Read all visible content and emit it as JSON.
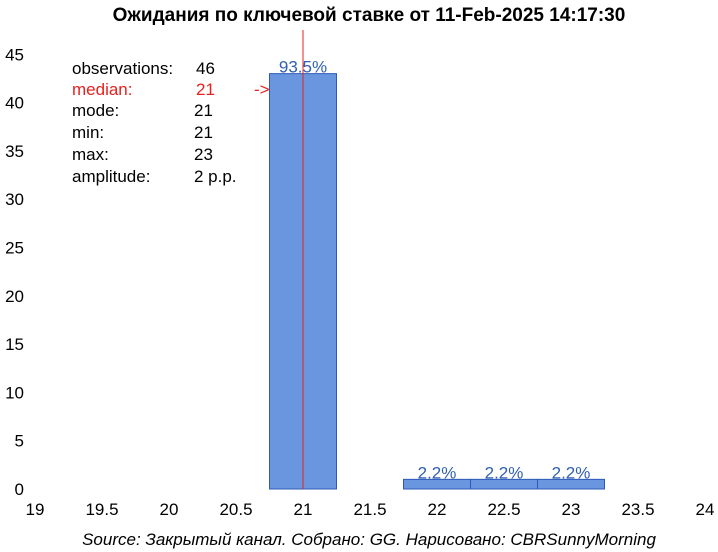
{
  "chart_data": {
    "type": "bar",
    "title": "Ожидания по ключевой ставке от 11-Feb-2025 14:17:30",
    "xlabel": "",
    "ylabel": "",
    "xlim": [
      19,
      24
    ],
    "ylim": [
      0,
      47
    ],
    "x_ticks": [
      "19",
      "19.5",
      "20",
      "20.5",
      "21",
      "21.5",
      "22",
      "22.5",
      "23",
      "23.5",
      "24"
    ],
    "y_ticks": [
      "0",
      "5",
      "10",
      "15",
      "20",
      "25",
      "30",
      "35",
      "40",
      "45"
    ],
    "bin_width": 0.5,
    "bars": [
      {
        "x": 21,
        "value": 43,
        "label": "93.5%"
      },
      {
        "x": 22,
        "value": 1,
        "label": "2.2%"
      },
      {
        "x": 22.5,
        "value": 1,
        "label": "2.2%"
      },
      {
        "x": 23,
        "value": 1,
        "label": "2.2%"
      }
    ],
    "median_line": 21,
    "bar_color": "#6a96e0",
    "bar_edge_color": "#2d59b8",
    "median_line_color": "#e8211f",
    "grid": false
  },
  "stats": {
    "observations": {
      "label": "observations:",
      "value": "46"
    },
    "median": {
      "label": "median:",
      "value": "21",
      "arrow": "->"
    },
    "mode": {
      "label": "mode:",
      "value": "21"
    },
    "min": {
      "label": "min:",
      "value": "21"
    },
    "max": {
      "label": "max:",
      "value": "23"
    },
    "amplitude": {
      "label": "amplitude:",
      "value": "2 p.p."
    }
  },
  "source": "Source: Закрытый канал. Собрано: GG. Нарисовано: CBRSunnyMorning"
}
